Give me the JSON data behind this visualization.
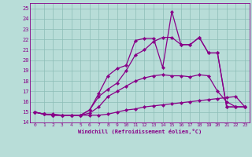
{
  "xlabel": "Windchill (Refroidissement éolien,°C)",
  "xlim": [
    -0.5,
    23.5
  ],
  "ylim": [
    14,
    25.5
  ],
  "xticks": [
    0,
    1,
    2,
    3,
    4,
    5,
    6,
    7,
    8,
    9,
    10,
    11,
    12,
    13,
    14,
    15,
    16,
    17,
    18,
    19,
    20,
    21,
    22,
    23
  ],
  "yticks": [
    14,
    15,
    16,
    17,
    18,
    19,
    20,
    21,
    22,
    23,
    24,
    25
  ],
  "background_color": "#b8ddd8",
  "grid_color": "#8cbcb6",
  "line_color": "#880088",
  "line1_x": [
    0,
    1,
    2,
    3,
    4,
    5,
    6,
    7,
    8,
    9,
    10,
    11,
    12,
    13,
    14,
    15,
    16,
    17,
    18,
    19,
    20,
    21,
    22,
    23
  ],
  "line1_y": [
    15,
    14.8,
    14.8,
    14.7,
    14.7,
    14.7,
    14.7,
    14.7,
    14.8,
    15.0,
    15.2,
    15.3,
    15.5,
    15.6,
    15.7,
    15.8,
    15.9,
    16.0,
    16.1,
    16.2,
    16.3,
    16.4,
    16.5,
    15.5
  ],
  "line2_x": [
    0,
    1,
    2,
    3,
    4,
    5,
    6,
    7,
    8,
    9,
    10,
    11,
    12,
    13,
    14,
    15,
    16,
    17,
    18,
    19,
    20,
    21,
    22,
    23
  ],
  "line2_y": [
    15,
    14.8,
    14.7,
    14.7,
    14.7,
    14.7,
    14.9,
    15.5,
    16.5,
    17.0,
    17.5,
    18.0,
    18.3,
    18.5,
    18.6,
    18.5,
    18.5,
    18.4,
    18.6,
    18.5,
    17.0,
    16.0,
    15.5,
    15.5
  ],
  "line3_x": [
    0,
    1,
    2,
    3,
    4,
    5,
    6,
    7,
    8,
    9,
    10,
    11,
    12,
    13,
    14,
    15,
    16,
    17,
    18,
    19,
    20,
    21,
    22,
    23
  ],
  "line3_y": [
    15,
    14.8,
    14.7,
    14.7,
    14.7,
    14.7,
    15.2,
    16.5,
    17.2,
    17.8,
    19.0,
    20.5,
    21.0,
    21.8,
    22.2,
    22.2,
    21.5,
    21.5,
    22.2,
    20.7,
    20.7,
    15.5,
    15.5,
    15.5
  ],
  "line4_x": [
    0,
    1,
    2,
    3,
    4,
    5,
    6,
    7,
    8,
    9,
    10,
    11,
    12,
    13,
    14,
    15,
    16,
    17,
    18,
    19,
    20,
    21,
    22,
    23
  ],
  "line4_y": [
    15,
    14.8,
    14.7,
    14.7,
    14.7,
    14.7,
    15.2,
    16.8,
    18.5,
    19.2,
    19.5,
    21.9,
    22.1,
    22.1,
    19.3,
    24.7,
    21.5,
    21.5,
    22.2,
    20.7,
    20.7,
    15.5,
    15.5,
    15.5
  ],
  "marker": "D",
  "markersize": 2.2,
  "linewidth": 0.9
}
